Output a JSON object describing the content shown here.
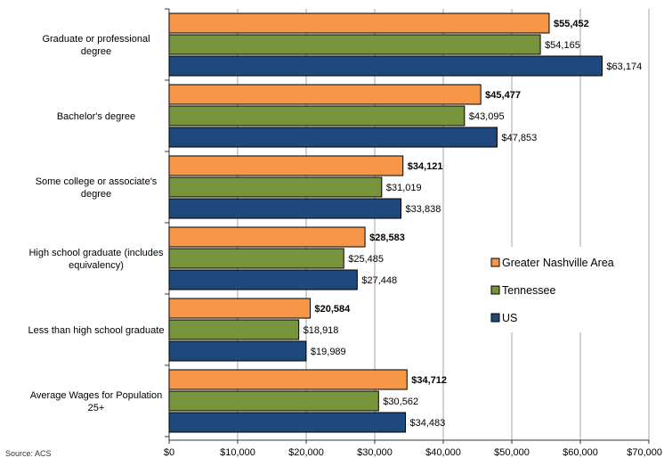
{
  "chart_data": {
    "type": "bar",
    "orientation": "horizontal",
    "categories": [
      "Graduate or professional degree",
      "Bachelor's degree",
      "Some college or associate's degree",
      "High school graduate (includes equivalency)",
      "Less than high school graduate",
      "Average Wages for Population 25+"
    ],
    "series": [
      {
        "name": "Greater Nashville Area",
        "color": "#F79646",
        "bold_labels": true,
        "values": [
          55452,
          45477,
          34121,
          28583,
          20584,
          34712
        ],
        "labels": [
          "$55,452",
          "$45,477",
          "$34,121",
          "$28,583",
          "$20,584",
          "$34,712"
        ]
      },
      {
        "name": "Tennessee",
        "color": "#77933C",
        "bold_labels": false,
        "values": [
          54165,
          43095,
          31019,
          25485,
          18918,
          30562
        ],
        "labels": [
          "$54,165",
          "$43,095",
          "$31,019",
          "$25,485",
          "$18,918",
          "$30,562"
        ]
      },
      {
        "name": "US",
        "color": "#1F497D",
        "bold_labels": false,
        "values": [
          63174,
          47853,
          33838,
          27448,
          19989,
          34483
        ],
        "labels": [
          "$63,174",
          "$47,853",
          "$33,838",
          "$27,448",
          "$19,989",
          "$34,483"
        ]
      }
    ],
    "xlim": [
      0,
      70000
    ],
    "xticks": [
      0,
      10000,
      20000,
      30000,
      40000,
      50000,
      60000,
      70000
    ],
    "xtick_labels": [
      "$0",
      "$10,000",
      "$20,000",
      "$30,000",
      "$40,000",
      "$50,000",
      "$60,000",
      "$70,000"
    ],
    "grid": "vertical",
    "legend_position": "right"
  },
  "source_label": "Source: ACS"
}
